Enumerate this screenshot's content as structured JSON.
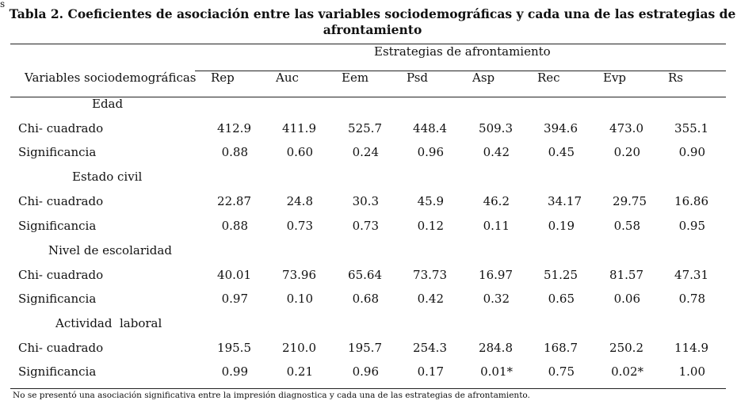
{
  "corner_mark": "s",
  "title": "Tabla 2. Coeficientes de asociación entre las variables sociodemográficas y cada una de las estrategias de afrontamiento",
  "group_header": "Estrategias de afrontamiento",
  "variable_header": "Variables sociodemográficas",
  "columns": [
    "Rep",
    "Auc",
    "Eem",
    "Psd",
    "Asp",
    "Rec",
    "Evp",
    "Rs"
  ],
  "sections": [
    {
      "label": "Edad",
      "rows": [
        {
          "label": "Chi- cuadrado",
          "values": [
            "412.9",
            "411.9",
            "525.7",
            "448.4",
            "509.3",
            "394.6",
            "473.0",
            "355.1"
          ]
        },
        {
          "label": "Significancia",
          "values": [
            "0.88",
            "0.60",
            "0.24",
            "0.96",
            "0.42",
            "0.45",
            "0.20",
            "0.90"
          ]
        }
      ]
    },
    {
      "label": "Estado civil",
      "rows": [
        {
          "label": "Chi- cuadrado",
          "values": [
            "22.87",
            "24.8",
            "30.3",
            "45.9",
            "46.2",
            "34.17",
            "29.75",
            "16.86"
          ]
        },
        {
          "label": "Significancia",
          "values": [
            "0.88",
            "0.73",
            "0.73",
            "0.12",
            "0.11",
            "0.19",
            "0.58",
            "0.95"
          ]
        }
      ]
    },
    {
      "label": "Nivel de escolaridad",
      "rows": [
        {
          "label": "Chi- cuadrado",
          "values": [
            "40.01",
            "73.96",
            "65.64",
            "73.73",
            "16.97",
            "51.25",
            "81.57",
            "47.31"
          ]
        },
        {
          "label": "Significancia",
          "values": [
            "0.97",
            "0.10",
            "0.68",
            "0.42",
            "0.32",
            "0.65",
            "0.06",
            "0.78"
          ]
        }
      ]
    },
    {
      "label": "Actividad  laboral",
      "rows": [
        {
          "label": "Chi- cuadrado",
          "values": [
            "195.5",
            "210.0",
            "195.7",
            "254.3",
            "284.8",
            "168.7",
            "250.2",
            "114.9"
          ]
        },
        {
          "label": "Significancia",
          "values": [
            "0.99",
            "0.21",
            "0.96",
            "0.17",
            "0.01*",
            "0.75",
            "0.02*",
            "1.00"
          ]
        }
      ]
    }
  ],
  "footnote": "No se presentó una asociación significativa entre la impresión diagnostica y cada una de las estrategias de afrontamiento."
}
